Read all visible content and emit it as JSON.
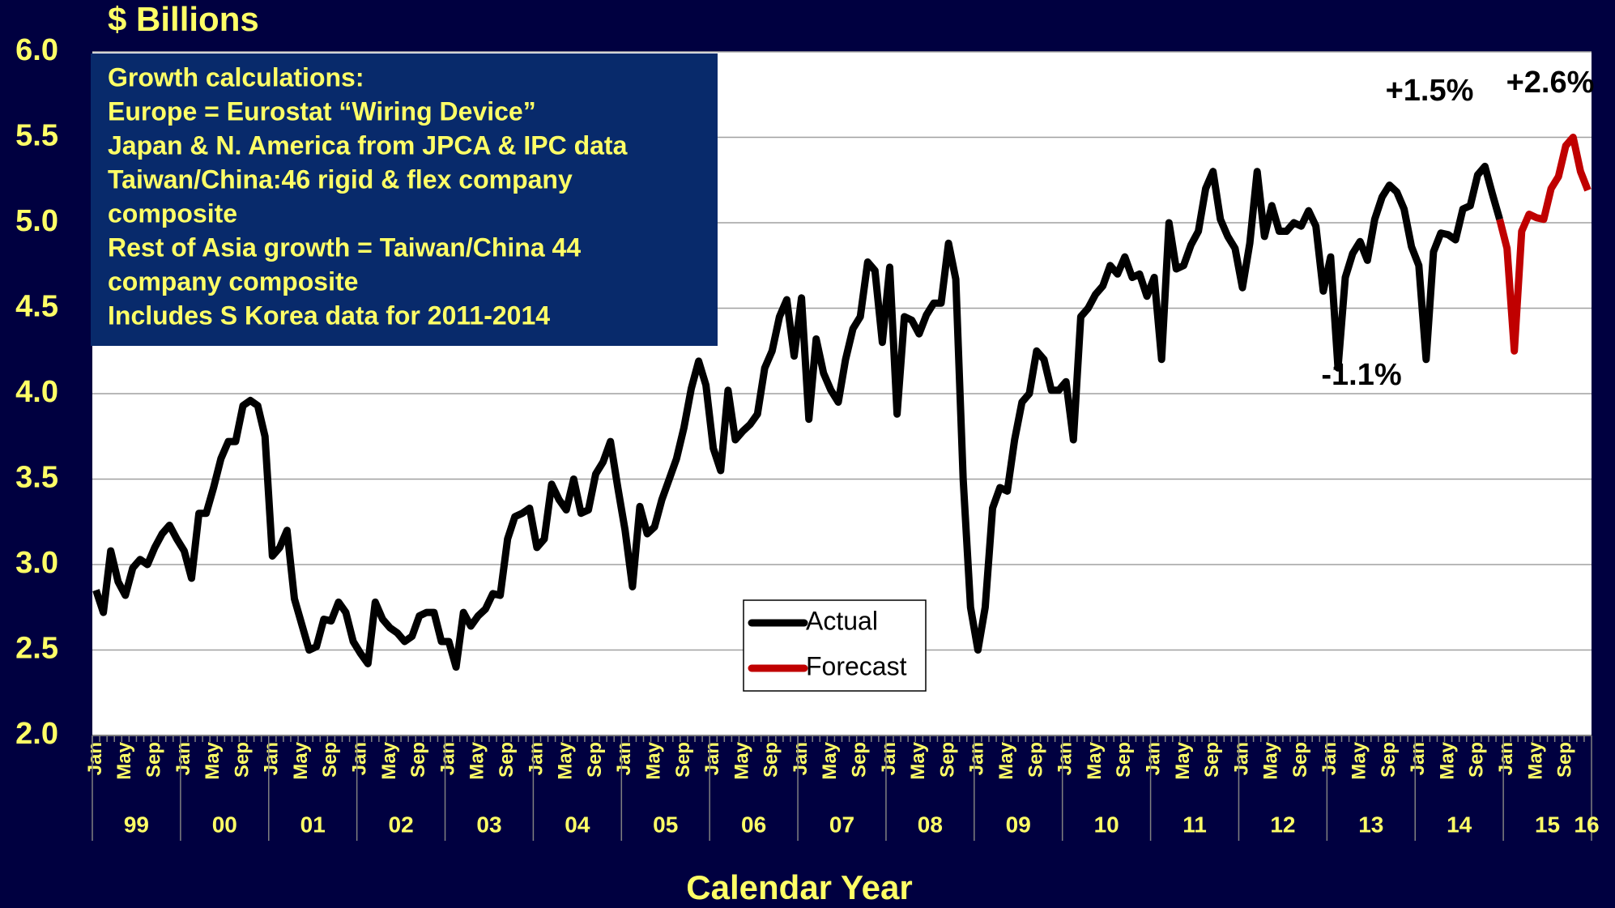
{
  "chart_data": {
    "type": "line",
    "title": "$ Billions",
    "x_label": "Calendar Year",
    "categories": [
      "Jan",
      null,
      null,
      null,
      "May",
      null,
      null,
      null,
      "Sep",
      null,
      null,
      null,
      "Jan",
      null,
      null,
      null,
      "May",
      null,
      null,
      null,
      "Sep",
      null,
      null,
      null,
      "Jan",
      null,
      null,
      null,
      "May",
      null,
      null,
      null,
      "Sep",
      null,
      null,
      null,
      "Jan",
      null,
      null,
      null,
      "May",
      null,
      null,
      null,
      "Sep",
      null,
      null,
      null,
      "Jan",
      null,
      null,
      null,
      "May",
      null,
      null,
      null,
      "Sep",
      null,
      null,
      null,
      "Jan",
      null,
      null,
      null,
      "May",
      null,
      null,
      null,
      "Sep",
      null,
      null,
      null,
      "Jan",
      null,
      null,
      null,
      "May",
      null,
      null,
      null,
      "Sep",
      null,
      null,
      null,
      "Jan",
      null,
      null,
      null,
      "May",
      null,
      null,
      null,
      "Sep",
      null,
      null,
      null,
      "Jan",
      null,
      null,
      null,
      "May",
      null,
      null,
      null,
      "Sep",
      null,
      null,
      null,
      "Jan",
      null,
      null,
      null,
      "May",
      null,
      null,
      null,
      "Sep",
      null,
      null,
      null,
      "Jan",
      null,
      null,
      null,
      "May",
      null,
      null,
      null,
      "Sep",
      null,
      null,
      null,
      "Jan",
      null,
      null,
      null,
      "May",
      null,
      null,
      null,
      "Sep",
      null,
      null,
      null,
      "Jan",
      null,
      null,
      null,
      "May",
      null,
      null,
      null,
      "Sep",
      null,
      null,
      null,
      "Jan",
      null,
      null,
      null,
      "May",
      null,
      null,
      null,
      "Sep",
      null,
      null,
      null,
      "Jan",
      null,
      null,
      null,
      "May",
      null,
      null,
      null,
      "Sep",
      null,
      null,
      null,
      "Jan",
      null,
      null,
      null,
      "May",
      null,
      null,
      null,
      "Sep",
      null,
      null,
      null,
      "Jan",
      null,
      null,
      null,
      "May",
      null,
      null,
      null,
      "Sep",
      null,
      null,
      null
    ],
    "year_labels": [
      "99",
      "00",
      "01",
      "02",
      "03",
      "04",
      "05",
      "06",
      "07",
      "08",
      "09",
      "10",
      "11",
      "12",
      "13",
      "14",
      "15",
      "16"
    ],
    "series": [
      {
        "name": "Actual",
        "color": "#000000",
        "values": [
          2.85,
          2.72,
          3.08,
          2.9,
          2.82,
          2.98,
          3.03,
          3.0,
          3.1,
          3.18,
          3.23,
          3.15,
          3.08,
          2.92,
          3.3,
          3.3,
          3.45,
          3.62,
          3.72,
          3.72,
          3.93,
          3.96,
          3.93,
          3.75,
          3.05,
          3.1,
          3.2,
          2.8,
          2.65,
          2.5,
          2.52,
          2.68,
          2.67,
          2.78,
          2.72,
          2.55,
          2.48,
          2.42,
          2.78,
          2.68,
          2.63,
          2.6,
          2.55,
          2.58,
          2.7,
          2.72,
          2.72,
          2.55,
          2.55,
          2.4,
          2.72,
          2.64,
          2.7,
          2.74,
          2.83,
          2.82,
          3.15,
          3.28,
          3.3,
          3.33,
          3.1,
          3.15,
          3.47,
          3.38,
          3.32,
          3.5,
          3.3,
          3.32,
          3.53,
          3.6,
          3.72,
          3.45,
          3.2,
          2.87,
          3.34,
          3.18,
          3.22,
          3.38,
          3.5,
          3.62,
          3.8,
          4.03,
          4.19,
          4.05,
          3.68,
          3.55,
          4.02,
          3.73,
          3.78,
          3.82,
          3.88,
          4.15,
          4.25,
          4.45,
          4.55,
          4.22,
          4.56,
          3.85,
          4.32,
          4.12,
          4.02,
          3.95,
          4.2,
          4.38,
          4.45,
          4.77,
          4.72,
          4.3,
          4.74,
          3.88,
          4.45,
          4.43,
          4.35,
          4.46,
          4.53,
          4.53,
          4.88,
          4.67,
          3.5,
          2.75,
          2.5,
          2.75,
          3.33,
          3.45,
          3.43,
          3.73,
          3.95,
          4.0,
          4.25,
          4.2,
          4.02,
          4.02,
          4.07,
          3.73,
          4.45,
          4.5,
          4.58,
          4.63,
          4.75,
          4.7,
          4.8,
          4.68,
          4.7,
          4.57,
          4.68,
          4.2,
          5.0,
          4.73,
          4.75,
          4.87,
          4.95,
          5.2,
          5.3,
          5.02,
          4.92,
          4.85,
          4.62,
          4.88,
          5.3,
          4.92,
          5.1,
          4.95,
          4.95,
          5.0,
          4.98,
          5.07,
          4.98,
          4.6,
          4.8,
          4.15,
          4.68,
          4.82,
          4.89,
          4.78,
          5.02,
          5.15,
          5.22,
          5.18,
          5.08,
          4.86,
          4.75,
          4.2,
          4.83,
          4.94,
          4.93,
          4.9,
          5.08,
          5.1,
          5.28,
          5.33,
          5.17,
          5.02,
          null,
          null,
          null,
          null,
          null,
          null,
          null,
          null,
          null,
          null,
          null,
          null
        ]
      },
      {
        "name": "Forecast",
        "color": "#c00000",
        "values": [
          null,
          null,
          null,
          null,
          null,
          null,
          null,
          null,
          null,
          null,
          null,
          null,
          null,
          null,
          null,
          null,
          null,
          null,
          null,
          null,
          null,
          null,
          null,
          null,
          null,
          null,
          null,
          null,
          null,
          null,
          null,
          null,
          null,
          null,
          null,
          null,
          null,
          null,
          null,
          null,
          null,
          null,
          null,
          null,
          null,
          null,
          null,
          null,
          null,
          null,
          null,
          null,
          null,
          null,
          null,
          null,
          null,
          null,
          null,
          null,
          null,
          null,
          null,
          null,
          null,
          null,
          null,
          null,
          null,
          null,
          null,
          null,
          null,
          null,
          null,
          null,
          null,
          null,
          null,
          null,
          null,
          null,
          null,
          null,
          null,
          null,
          null,
          null,
          null,
          null,
          null,
          null,
          null,
          null,
          null,
          null,
          null,
          null,
          null,
          null,
          null,
          null,
          null,
          null,
          null,
          null,
          null,
          null,
          null,
          null,
          null,
          null,
          null,
          null,
          null,
          null,
          null,
          null,
          null,
          null,
          null,
          null,
          null,
          null,
          null,
          null,
          null,
          null,
          null,
          null,
          null,
          null,
          null,
          null,
          null,
          null,
          null,
          null,
          null,
          null,
          null,
          null,
          null,
          null,
          null,
          null,
          null,
          null,
          null,
          null,
          null,
          null,
          null,
          null,
          null,
          null,
          null,
          null,
          null,
          null,
          null,
          null,
          null,
          null,
          null,
          null,
          null,
          null,
          null,
          null,
          null,
          null,
          null,
          null,
          null,
          null,
          null,
          null,
          null,
          null,
          null,
          null,
          null,
          null,
          null,
          null,
          null,
          null,
          null,
          null,
          null,
          5.02,
          4.85,
          4.25,
          4.95,
          5.05,
          5.03,
          5.02,
          5.2,
          5.27,
          5.45,
          5.5,
          5.3,
          5.19
        ]
      }
    ],
    "ylim": [
      2,
      6
    ],
    "yticks": [
      {
        "value": 2,
        "label": "2.0"
      },
      {
        "value": 2.5,
        "label": "2.5"
      },
      {
        "value": 3,
        "label": "3.0"
      },
      {
        "value": 3.5,
        "label": "3.5"
      },
      {
        "value": 4,
        "label": "4.0"
      },
      {
        "value": 4.5,
        "label": "4.5"
      },
      {
        "value": 5,
        "label": "5.0"
      },
      {
        "value": 5.5,
        "label": "5.5"
      },
      {
        "value": 6,
        "label": "6.0"
      }
    ],
    "grid": true,
    "annotations": [
      "+1.5%",
      "+2.6%",
      "-1.1%"
    ],
    "note_box": [
      "Growth calculations:",
      "Europe = Eurostat “Wiring Device”",
      "Japan & N. America from JPCA & IPC data",
      "Taiwan/China:46 rigid & flex company",
      "composite",
      "Rest of Asia growth = Taiwan/China 44",
      "company composite",
      "Includes S Korea data for 2011-2014"
    ]
  }
}
